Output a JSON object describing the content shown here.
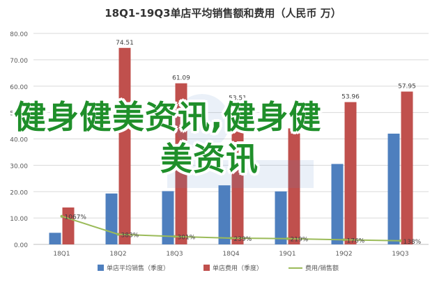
{
  "chart_data": {
    "type": "bar",
    "title": "18Q1-19Q3单店平均销售额和费用（人民币 万）",
    "categories": [
      "18Q1",
      "18Q2",
      "18Q3",
      "18Q4",
      "19Q1",
      "19Q2",
      "19Q3"
    ],
    "ylim": [
      0,
      80
    ],
    "yticks": [
      "0.00",
      "10.00",
      "20.00",
      "30.00",
      "40.00",
      "50.00",
      "60.00",
      "70.00",
      "80.00"
    ],
    "grid": true,
    "legend_position": "bottom",
    "series": [
      {
        "name": "单店平均销售（季度）",
        "type": "bar",
        "color": "#4e7fbe",
        "values": [
          4.4,
          19.3,
          20.2,
          22.4,
          20.1,
          30.5,
          42.0
        ],
        "labels": [
          "",
          "",
          "",
          "",
          "",
          "",
          ""
        ]
      },
      {
        "name": "单店费用（季度）",
        "type": "bar",
        "color": "#c0504d",
        "values": [
          14.0,
          74.51,
          61.09,
          53.51,
          44.0,
          53.96,
          57.95
        ],
        "labels": [
          "",
          "74.51",
          "61.09",
          "53.51",
          "",
          "53.96",
          "57.95"
        ]
      },
      {
        "name": "费用/销售额",
        "type": "line",
        "color": "#9bbb59",
        "values": [
          10.67,
          3.83,
          3.01,
          2.39,
          2.19,
          1.76,
          1.38
        ],
        "labels": [
          "1067%",
          "383%",
          "301%",
          "239%",
          "219%",
          "176%",
          "138%"
        ]
      }
    ]
  },
  "overlay_text": {
    "line1": "健身健美资讯,健身健",
    "line2": "美资讯"
  }
}
